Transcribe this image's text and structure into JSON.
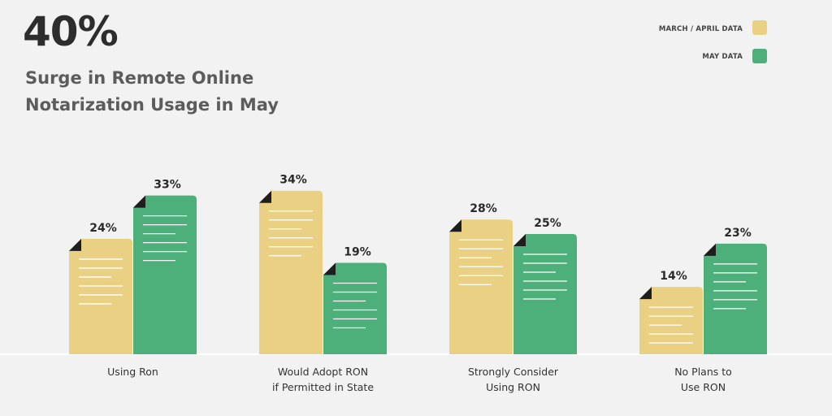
{
  "headline": {
    "stat": "40%",
    "line1": "Surge in Remote Online",
    "line2": "Notarization Usage in May"
  },
  "colors": {
    "series1": "#ead083",
    "series2": "#4daf7a",
    "background": "#f2f2f2",
    "text": "#333333"
  },
  "icons": {
    "bar_shape": "document-icon",
    "bar_corner": "folded-corner-icon"
  },
  "chart_data": {
    "type": "bar",
    "title": "",
    "xlabel": "",
    "ylabel": "",
    "ylim": [
      0,
      36
    ],
    "grid": false,
    "legend_position": "top-right",
    "categories": [
      [
        "Using Ron"
      ],
      [
        "Would Adopt RON",
        "if Permitted in State"
      ],
      [
        "Strongly Consider",
        "Using RON"
      ],
      [
        "No Plans to",
        "Use RON"
      ]
    ],
    "series": [
      {
        "name": "MARCH / APRIL DATA",
        "values": [
          24,
          34,
          28,
          14
        ],
        "labels": [
          "24%",
          "34%",
          "28%",
          "14%"
        ]
      },
      {
        "name": "MAY DATA",
        "values": [
          33,
          19,
          25,
          23
        ],
        "labels": [
          "33%",
          "19%",
          "25%",
          "23%"
        ]
      }
    ]
  }
}
